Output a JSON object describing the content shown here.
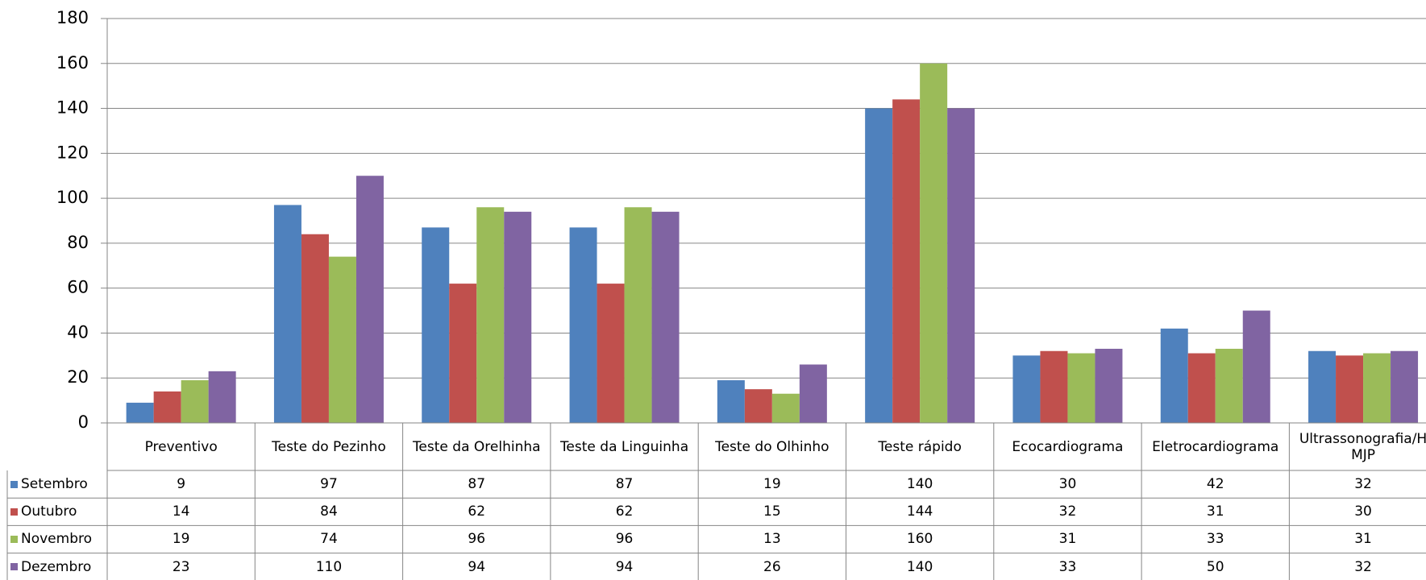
{
  "chart_data": {
    "type": "bar",
    "categories": [
      "Preventivo",
      "Teste do Pezinho",
      "Teste da Orelhinha",
      "Teste da Linguinha",
      "Teste do Olhinho",
      "Teste rápido",
      "Ecocardiograma",
      "Eletrocardiograma",
      "Ultrassonografia/H MJP"
    ],
    "series": [
      {
        "name": "Setembro",
        "color": "#4f81bd",
        "values": [
          9,
          97,
          87,
          87,
          19,
          140,
          30,
          42,
          32
        ]
      },
      {
        "name": "Outubro",
        "color": "#c0504d",
        "values": [
          14,
          84,
          62,
          62,
          15,
          144,
          32,
          31,
          30
        ]
      },
      {
        "name": "Novembro",
        "color": "#9bbb59",
        "values": [
          19,
          74,
          96,
          96,
          13,
          160,
          31,
          33,
          31
        ]
      },
      {
        "name": "Dezembro",
        "color": "#8064a2",
        "values": [
          23,
          110,
          94,
          94,
          26,
          140,
          33,
          50,
          32
        ]
      }
    ],
    "ylim": [
      0,
      180
    ],
    "yticks": [
      0,
      20,
      40,
      60,
      80,
      100,
      120,
      140,
      160,
      180
    ],
    "grid": true,
    "legend": "table"
  }
}
